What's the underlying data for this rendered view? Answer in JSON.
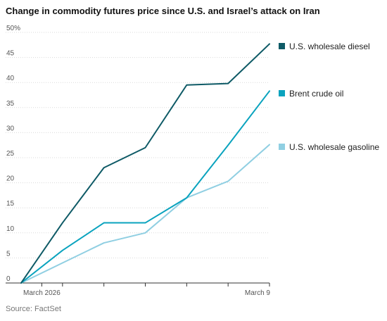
{
  "chart_data": {
    "type": "line",
    "title": "Change in commodity futures price since U.S. and Israel’s attack on Iran",
    "source": "Source: FactSet",
    "x": [
      0,
      1,
      2,
      3,
      4,
      5,
      6
    ],
    "x_ticks": [
      {
        "x": 0.5,
        "label": "March 2026"
      },
      {
        "x": 6,
        "label": "March 9"
      }
    ],
    "x_tick_marks": [
      0.5,
      1,
      2,
      3,
      4,
      5,
      6
    ],
    "ylim": [
      0,
      50
    ],
    "y_ticks": [
      0,
      5,
      10,
      15,
      20,
      25,
      30,
      35,
      40,
      45,
      50
    ],
    "y_tick_labels": [
      "0",
      "5",
      "10",
      "15",
      "20",
      "25",
      "30",
      "35",
      "40",
      "45",
      "50%"
    ],
    "grid": "horizontal",
    "legend_position": "right",
    "series": [
      {
        "name": "U.S. wholesale diesel",
        "color": "#0e5a66",
        "values": [
          0,
          12.0,
          23.0,
          27.0,
          39.5,
          39.8,
          47.7
        ]
      },
      {
        "name": "Brent crude oil",
        "color": "#0aa3be",
        "values": [
          0,
          6.5,
          12.0,
          12.0,
          17.0,
          27.5,
          38.3
        ]
      },
      {
        "name": "U.S. wholesale gasoline",
        "color": "#90cfe2",
        "values": [
          0,
          4.0,
          8.0,
          10.0,
          17.0,
          20.3,
          27.6
        ]
      }
    ]
  }
}
